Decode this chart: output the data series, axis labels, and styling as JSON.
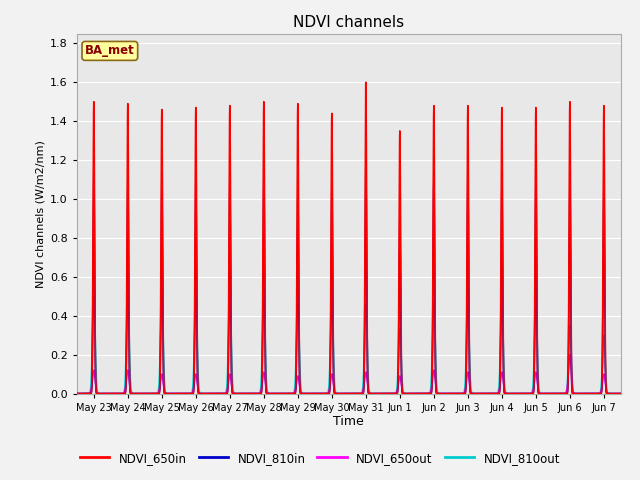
{
  "title": "NDVI channels",
  "xlabel": "Time",
  "ylabel": "NDVI channels (W/m2/nm)",
  "ylim": [
    0.0,
    1.85
  ],
  "yticks": [
    0.0,
    0.2,
    0.4,
    0.6,
    0.8,
    1.0,
    1.2,
    1.4,
    1.6,
    1.8
  ],
  "fig_facecolor": "#f2f2f2",
  "axes_facecolor": "#e8e8e8",
  "legend_label": "BA_met",
  "legend_text_color": "#8B0000",
  "line_colors": {
    "NDVI_650in": "#FF0000",
    "NDVI_810in": "#0000CD",
    "NDVI_650out": "#FF00FF",
    "NDVI_810out": "#00CCCC"
  },
  "line_widths": {
    "NDVI_650in": 1.2,
    "NDVI_810in": 1.2,
    "NDVI_650out": 1.2,
    "NDVI_810out": 1.2
  },
  "xtick_labels": [
    "May 23",
    "May 24",
    "May 25",
    "May 26",
    "May 27",
    "May 28",
    "May 29",
    "May 30",
    "May 31",
    "Jun 1",
    "Jun 2",
    "Jun 3",
    "Jun 4",
    "Jun 5",
    "Jun 6",
    "Jun 7"
  ],
  "peak_650in": [
    1.5,
    1.49,
    1.46,
    1.47,
    1.48,
    1.5,
    1.49,
    1.44,
    1.6,
    1.35,
    1.48,
    1.48,
    1.47,
    1.47,
    1.5,
    1.48
  ],
  "peak_810in": [
    1.13,
    1.09,
    1.07,
    1.07,
    1.08,
    1.1,
    1.05,
    1.06,
    1.18,
    0.9,
    1.09,
    1.08,
    1.07,
    1.08,
    1.09,
    1.07
  ],
  "peak_650out": [
    0.12,
    0.12,
    0.1,
    0.1,
    0.1,
    0.11,
    0.09,
    0.1,
    0.11,
    0.09,
    0.12,
    0.11,
    0.11,
    0.11,
    0.2,
    0.1
  ],
  "peak_810out": [
    0.5,
    0.5,
    0.49,
    0.49,
    0.5,
    0.49,
    0.47,
    0.48,
    0.46,
    0.33,
    0.47,
    0.45,
    0.45,
    0.45,
    0.35,
    0.3
  ],
  "samples_per_day": 500,
  "num_days": 16
}
